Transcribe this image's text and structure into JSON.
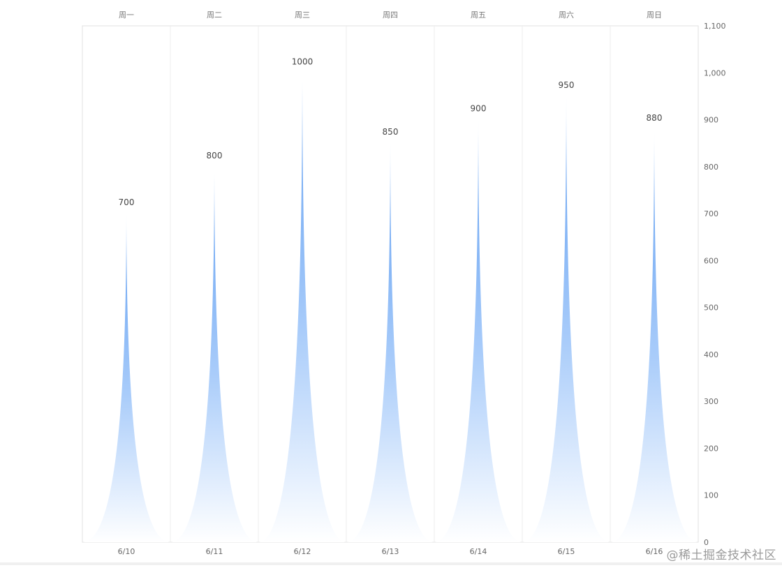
{
  "chart_data": {
    "type": "bar",
    "bar_style": "pictorial-spike",
    "categories": [
      "6/10",
      "6/11",
      "6/12",
      "6/13",
      "6/14",
      "6/15",
      "6/16"
    ],
    "top_categories": [
      "周一",
      "周二",
      "周三",
      "周四",
      "周五",
      "周六",
      "周日"
    ],
    "values": [
      700,
      800,
      1000,
      850,
      900,
      950,
      880
    ],
    "y_ticks": [
      "0",
      "100",
      "200",
      "300",
      "400",
      "500",
      "600",
      "700",
      "800",
      "900",
      "1,000",
      "1,100"
    ],
    "ylim": [
      0,
      1100
    ],
    "y_axis_position": "right",
    "data_labels": true,
    "grid": "vertical",
    "colors": {
      "bar_top": "#5b9bf0",
      "bar_bottom": "#ffffff",
      "grid": "#eeeeee",
      "axis": "#e0e0e0"
    }
  },
  "watermark": "@稀土掘金技术社区"
}
